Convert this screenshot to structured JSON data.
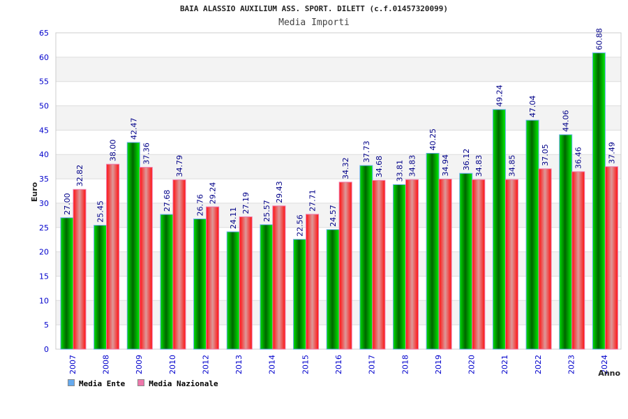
{
  "chart_data": {
    "type": "bar",
    "title": "BAIA ALASSIO AUXILIUM ASS. SPORT. DILETT (c.f.01457320099)",
    "subtitle": "Media Importi",
    "xlabel": "Anno",
    "ylabel": "Euro",
    "ylim": [
      0,
      65
    ],
    "yticks": [
      0,
      5,
      10,
      15,
      20,
      25,
      30,
      35,
      40,
      45,
      50,
      55,
      60,
      65
    ],
    "categories": [
      "2007",
      "2008",
      "2009",
      "2010",
      "2012",
      "2013",
      "2014",
      "2015",
      "2016",
      "2017",
      "2018",
      "2019",
      "2020",
      "2021",
      "2022",
      "2023",
      "2024"
    ],
    "series": [
      {
        "name": "Media Ente",
        "color": "#00aa00",
        "legend_color": "#66aaee",
        "values": [
          27.0,
          25.45,
          42.47,
          27.68,
          26.76,
          24.11,
          25.57,
          22.56,
          24.57,
          37.73,
          33.81,
          40.25,
          36.12,
          49.24,
          47.04,
          44.06,
          60.88
        ]
      },
      {
        "name": "Media Nazionale",
        "color": "#ff2020",
        "legend_color": "#ee77aa",
        "values": [
          32.82,
          38.0,
          37.36,
          34.79,
          29.24,
          27.19,
          29.43,
          27.71,
          34.32,
          34.68,
          34.83,
          34.94,
          34.83,
          34.85,
          37.05,
          36.46,
          37.49
        ]
      }
    ],
    "legend": "bottom-left",
    "grid": true
  }
}
